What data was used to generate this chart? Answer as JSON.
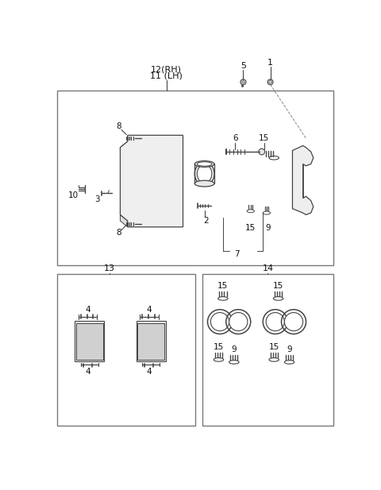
{
  "bg": "white",
  "lc": "#444444",
  "lc2": "#666666",
  "fs_label": 7.5,
  "fs_num": 7.5,
  "fig_w": 4.8,
  "fig_h": 6.17,
  "dpi": 100,
  "top_box": [
    15,
    52,
    455,
    52,
    455,
    335,
    15,
    335
  ],
  "bot_left_box": [
    15,
    352,
    240,
    352,
    240,
    598,
    15,
    598
  ],
  "bot_right_box": [
    252,
    352,
    462,
    352,
    462,
    598,
    252,
    598
  ]
}
